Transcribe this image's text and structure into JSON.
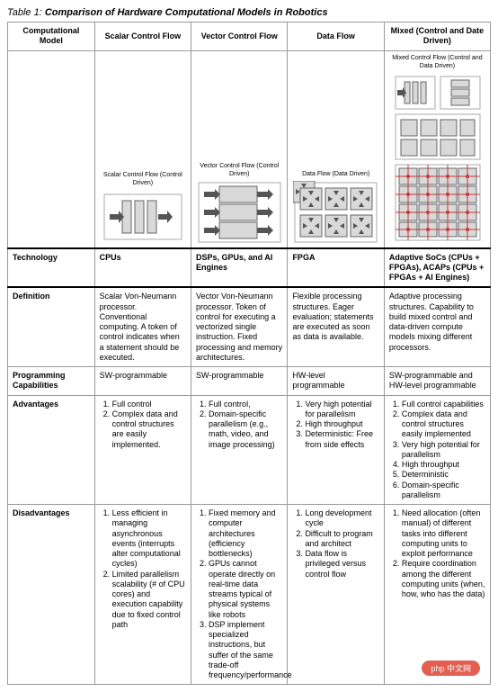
{
  "title_prefix": "Table 1:",
  "title_text": "Comparison of Hardware Computational Models in Robotics",
  "headers": {
    "c0": "Computational Model",
    "c1": "Scalar Control Flow",
    "c2": "Vector Control Flow",
    "c3": "Data Flow",
    "c4": "Mixed (Control and Date Driven)"
  },
  "diagram_labels": {
    "scalar": "Scalar Control Flow (Control Driven)",
    "vector": "Vector Control Flow (Control Driven)",
    "dataflow": "Data Flow (Data Driven)",
    "mixed": "Mixed Control Flow (Control and Data Driven)"
  },
  "rows": {
    "technology": {
      "label": "Technology",
      "c1": "CPUs",
      "c2": "DSPs, GPUs, and AI Engines",
      "c3": "FPGA",
      "c4": "Adaptive SoCs (CPUs + FPGAs), ACAPs (CPUs + FPGAs + AI Engines)"
    },
    "definition": {
      "label": "Definition",
      "c1": "Scalar Von-Neumann processor. Conventional computing. A token of control indicates when a statement should be executed.",
      "c2": "Vector Von-Neumann processor. Token of control for executing a vectorized single instruction. Fixed processing and memory architectures.",
      "c3": "Flexible processing structures. Eager evaluation; statements are executed as soon as data is available.",
      "c4": "Adaptive processing structures. Capability to build mixed control and data-driven compute models mixing different processors."
    },
    "programming": {
      "label": "Programming Capabilities",
      "c1": "SW-programmable",
      "c2": "SW-programmable",
      "c3": "HW-level programmable",
      "c4": "SW-programmable and HW-level programmable"
    },
    "advantages": {
      "label": "Advantages",
      "c1": [
        "Full control",
        "Complex data and control structures are easily implemented."
      ],
      "c2": [
        "Full control,",
        "Domain-specific parallelism (e.g., math, video, and image processing)"
      ],
      "c3": [
        "Very high potential for parallelism",
        "High throughput",
        "Deterministic: Free from side effects"
      ],
      "c4": [
        "Full control capabilities",
        "Complex data and control structures easily implemented",
        "Very high potential for parallelism",
        "High throughput",
        "Deterministic",
        "Domain-specific parallelism"
      ]
    },
    "disadvantages": {
      "label": "Disadvantages",
      "c1": [
        "Less efficient in managing asynchronous events (interrupts alter computational cycles)",
        "Limited parallelism scalability (# of CPU cores) and execution capability due to fixed control path"
      ],
      "c2": [
        "Fixed memory and computer architectures (efficiency bottlenecks)",
        "GPUs cannot operate directly on real-time data streams typical of physical systems like robots",
        "DSP implement specialized instructions, but suffer of the same trade-off frequency/performance"
      ],
      "c3": [
        "Long development cycle",
        "Difficult to program and architect",
        "Data flow is privileged versus control flow"
      ],
      "c4": [
        "Need allocation (often manual) of different tasks into different computing units to exploit performance",
        "Require coordination among the different computing units (when, how, who has the data)"
      ]
    }
  },
  "colors": {
    "block_fill": "#d9d9d9",
    "block_stroke": "#666666",
    "arrow": "#555555",
    "red": "#cc3333",
    "border": "#999999"
  },
  "watermark": "php 中文网"
}
